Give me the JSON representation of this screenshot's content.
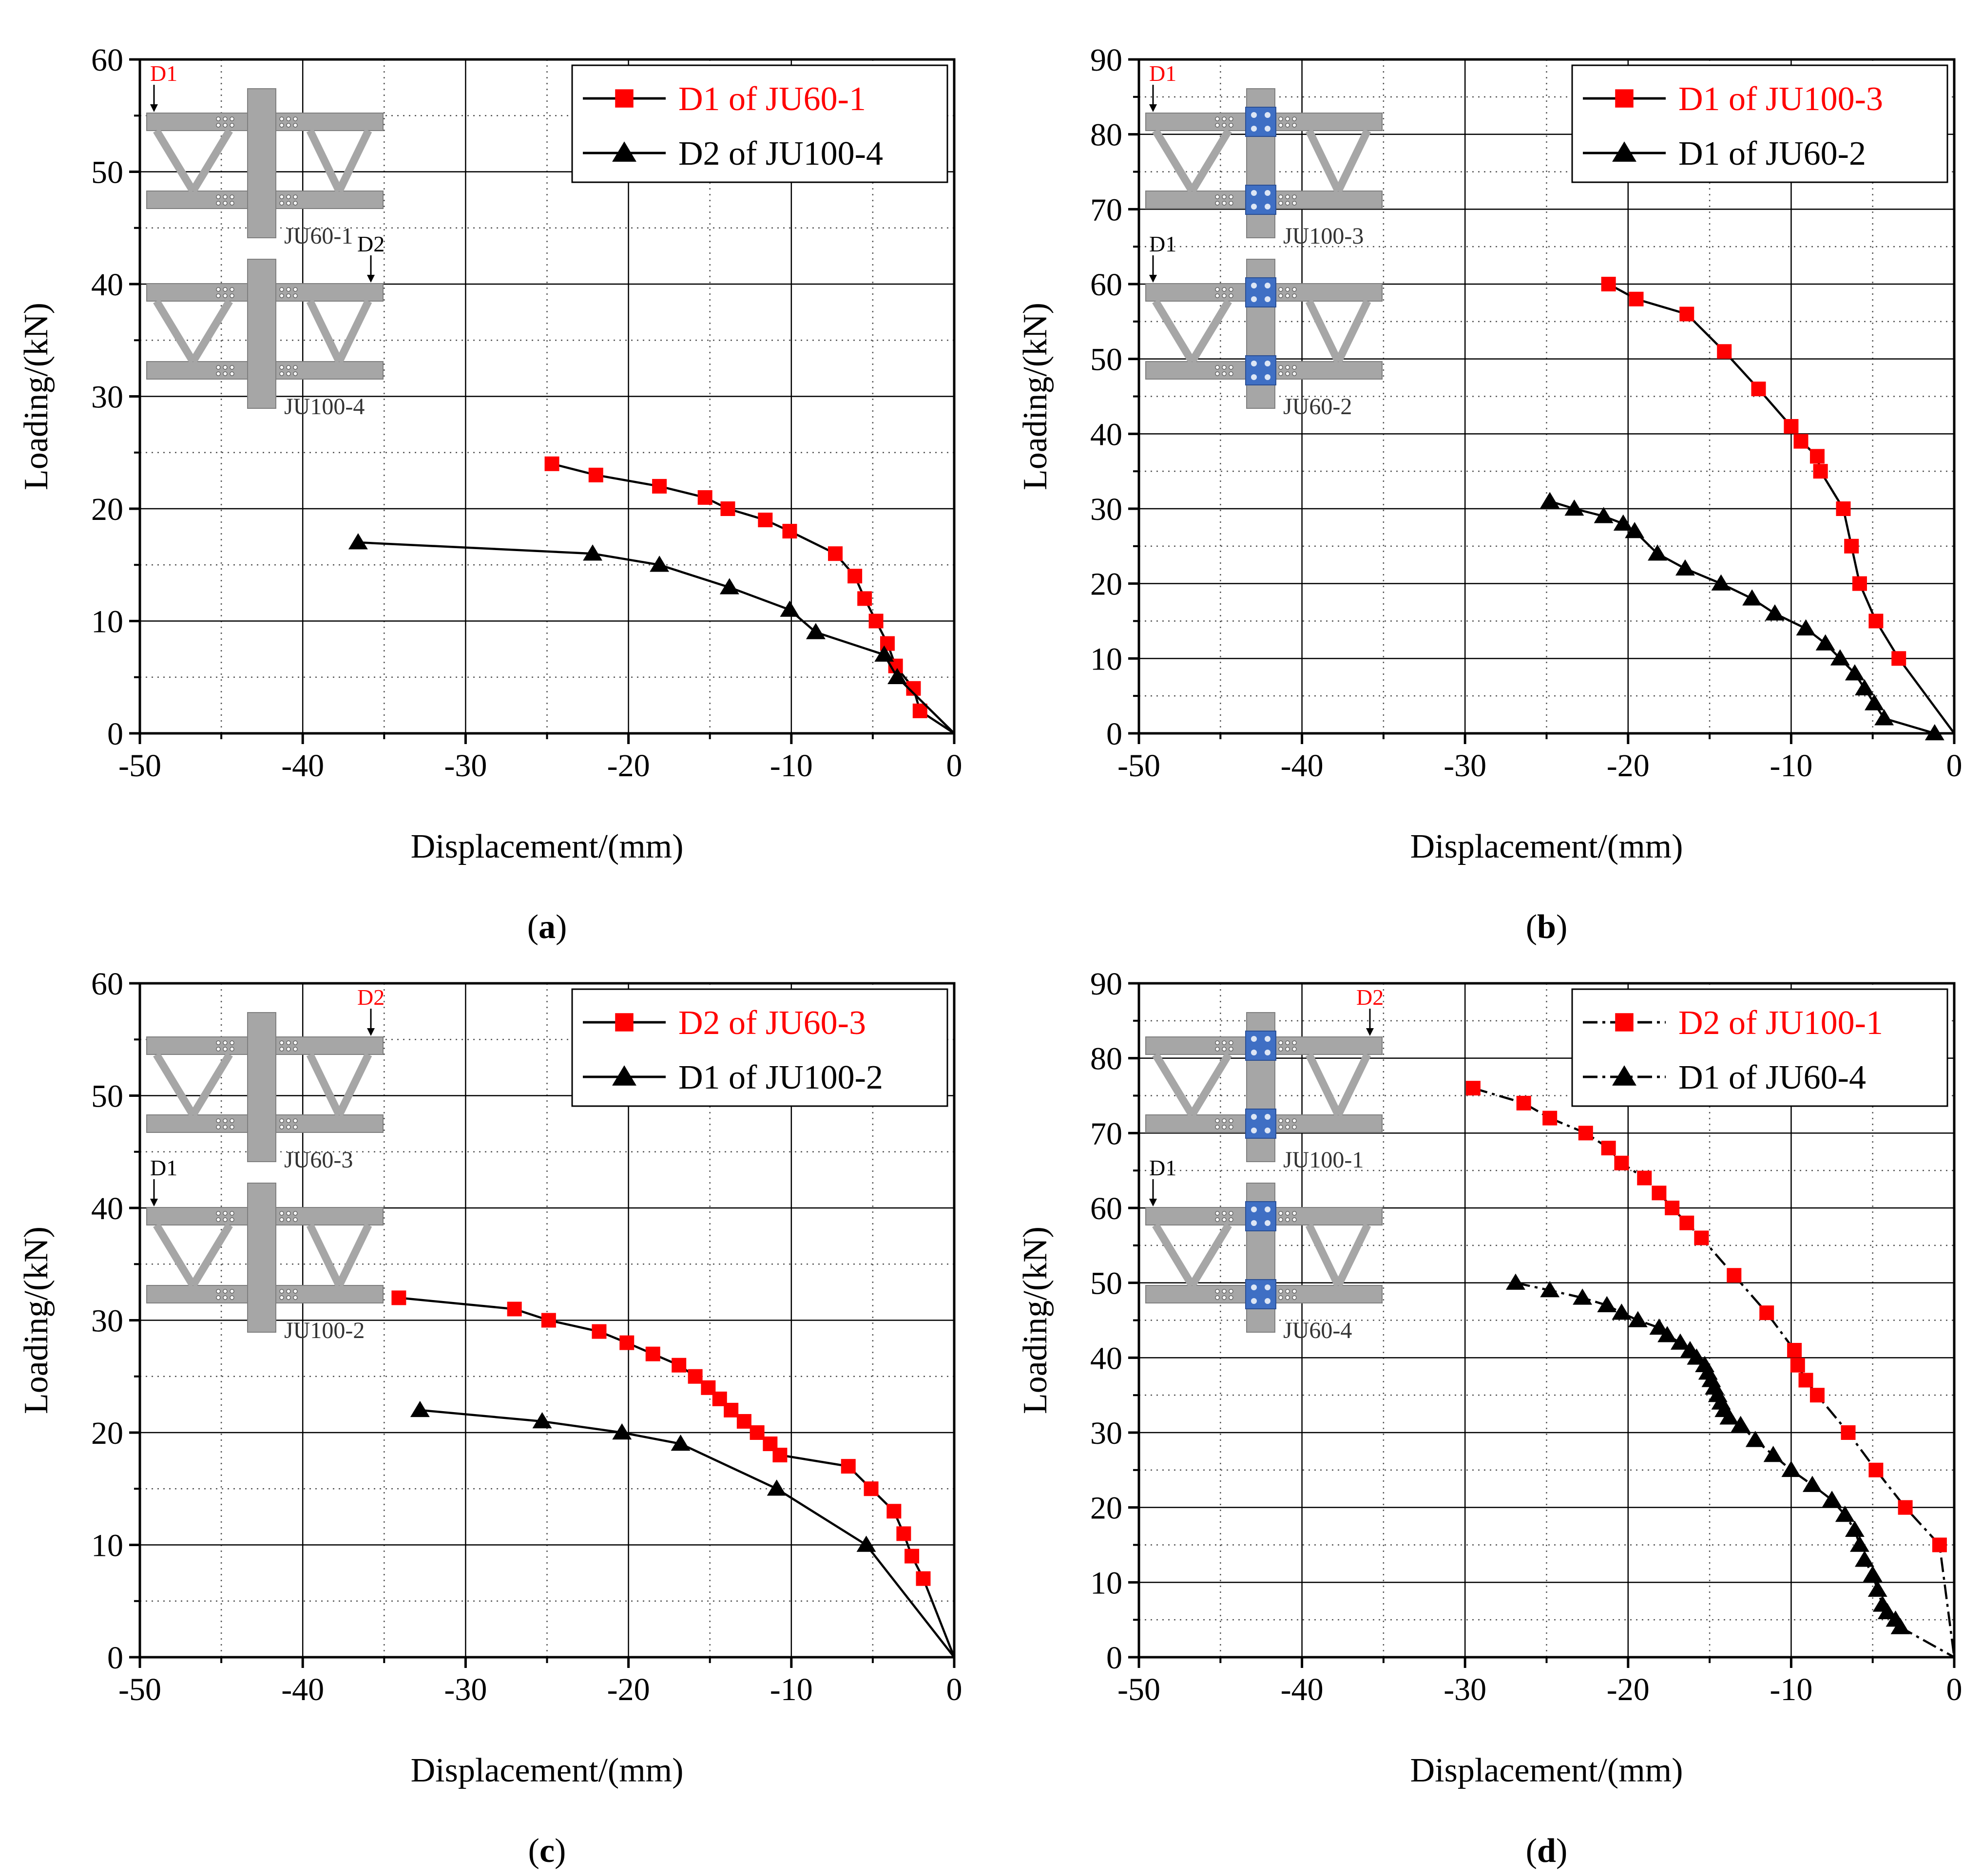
{
  "chart_data": [
    {
      "type": "line",
      "panel_label": "a",
      "xlabel": "Displacement/(mm)",
      "ylabel": "Loading/(kN)",
      "xlim": [
        -50,
        0
      ],
      "ylim": [
        0,
        60
      ],
      "xticks": [
        -50,
        -40,
        -30,
        -20,
        -10,
        0
      ],
      "yticks": [
        0,
        10,
        20,
        30,
        40,
        50,
        60
      ],
      "grid": true,
      "legend_position": "top-right",
      "series": [
        {
          "name": "D1 of JU60-1",
          "color": "#ff0000",
          "marker": "square",
          "dashed": false,
          "x": [
            -24.7,
            -22,
            -18.1,
            -15.3,
            -13.9,
            -11.6,
            -10.1,
            -7.3,
            -6.1,
            -5.5,
            -4.8,
            -4.1,
            -3.6,
            -2.5,
            -2.1,
            0
          ],
          "y": [
            24,
            23,
            22,
            21,
            20,
            19,
            18,
            16,
            14,
            12,
            10,
            8,
            6,
            4,
            2,
            0
          ]
        },
        {
          "name": "D2 of JU100-4",
          "color": "#000000",
          "marker": "triangle",
          "dashed": false,
          "x": [
            -36.6,
            -22.2,
            -18.1,
            -13.8,
            -10.1,
            -8.5,
            -4.3,
            -3.5,
            0
          ],
          "y": [
            17,
            16,
            15,
            13,
            11,
            9,
            7,
            5,
            0
          ]
        }
      ],
      "insets": [
        {
          "pointer": "D1",
          "label": "JU60-1",
          "bolted": false,
          "pointer_side": "left",
          "pointer_color": "#ff0000"
        },
        {
          "pointer": "D2",
          "label": "JU100-4",
          "bolted": false,
          "pointer_side": "right",
          "pointer_color": "#000000"
        }
      ]
    },
    {
      "type": "line",
      "panel_label": "b",
      "xlabel": "Displacement/(mm)",
      "ylabel": "Loading/(kN)",
      "xlim": [
        -50,
        0
      ],
      "ylim": [
        0,
        90
      ],
      "xticks": [
        -50,
        -40,
        -30,
        -20,
        -10,
        0
      ],
      "yticks": [
        0,
        10,
        20,
        30,
        40,
        50,
        60,
        70,
        80,
        90
      ],
      "grid": true,
      "legend_position": "top-right",
      "series": [
        {
          "name": "D1 of JU100-3",
          "color": "#ff0000",
          "marker": "square",
          "dashed": false,
          "x": [
            -21.2,
            -19.5,
            -16.4,
            -14.1,
            -12,
            -10,
            -9.4,
            -8.4,
            -8.2,
            -6.8,
            -6.3,
            -5.8,
            -4.8,
            -3.4,
            0
          ],
          "y": [
            60,
            58,
            56,
            51,
            46,
            41,
            39,
            37,
            35,
            30,
            25,
            20,
            15,
            10,
            0
          ]
        },
        {
          "name": "D1 of JU60-2",
          "color": "#000000",
          "marker": "triangle",
          "dashed": false,
          "x": [
            -24.8,
            -23.3,
            -21.5,
            -20.3,
            -19.6,
            -18.2,
            -16.5,
            -14.3,
            -12.4,
            -11,
            -9.1,
            -7.9,
            -7,
            -6.1,
            -5.5,
            -4.9,
            -4.3,
            -1.2,
            0
          ],
          "y": [
            31,
            30,
            29,
            28,
            27,
            24,
            22,
            20,
            18,
            16,
            14,
            12,
            10,
            8,
            6,
            4,
            2,
            0,
            0
          ]
        }
      ],
      "insets": [
        {
          "pointer": "D1",
          "label": "JU100-3",
          "bolted": true,
          "pointer_side": "left",
          "pointer_color": "#ff0000"
        },
        {
          "pointer": "D1",
          "label": "JU60-2",
          "bolted": true,
          "pointer_side": "left",
          "pointer_color": "#000000"
        }
      ]
    },
    {
      "type": "line",
      "panel_label": "c",
      "xlabel": "Displacement/(mm)",
      "ylabel": "Loading/(kN)",
      "xlim": [
        -50,
        0
      ],
      "ylim": [
        0,
        60
      ],
      "xticks": [
        -50,
        -40,
        -30,
        -20,
        -10,
        0
      ],
      "yticks": [
        0,
        10,
        20,
        30,
        40,
        50,
        60
      ],
      "grid": true,
      "legend_position": "top-right",
      "series": [
        {
          "name": "D2 of JU60-3",
          "color": "#ff0000",
          "marker": "square",
          "dashed": false,
          "x": [
            -34.1,
            -27,
            -24.9,
            -21.8,
            -20.1,
            -18.5,
            -16.9,
            -15.9,
            -15.1,
            -14.4,
            -13.7,
            -12.9,
            -12.1,
            -11.3,
            -10.7,
            -6.5,
            -5.1,
            -3.7,
            -3.1,
            -2.6,
            -1.9,
            0
          ],
          "y": [
            32,
            31,
            30,
            29,
            28,
            27,
            26,
            25,
            24,
            23,
            22,
            21,
            20,
            19,
            18,
            17,
            15,
            13,
            11,
            9,
            7,
            0
          ]
        },
        {
          "name": "D1 of JU100-2",
          "color": "#000000",
          "marker": "triangle",
          "dashed": false,
          "x": [
            -32.8,
            -25.3,
            -20.4,
            -16.8,
            -10.9,
            -5.4,
            0
          ],
          "y": [
            22,
            21,
            20,
            19,
            15,
            10,
            0
          ]
        }
      ],
      "insets": [
        {
          "pointer": "D2",
          "label": "JU60-3",
          "bolted": false,
          "pointer_side": "right",
          "pointer_color": "#ff0000"
        },
        {
          "pointer": "D1",
          "label": "JU100-2",
          "bolted": false,
          "pointer_side": "left",
          "pointer_color": "#000000"
        }
      ]
    },
    {
      "type": "line",
      "panel_label": "d",
      "xlabel": "Displacement/(mm)",
      "ylabel": "Loading/(kN)",
      "xlim": [
        -50,
        0
      ],
      "ylim": [
        0,
        90
      ],
      "xticks": [
        -50,
        -40,
        -30,
        -20,
        -10,
        0
      ],
      "yticks": [
        0,
        10,
        20,
        30,
        40,
        50,
        60,
        70,
        80,
        90
      ],
      "grid": true,
      "legend_position": "top-right",
      "series": [
        {
          "name": "D2 of JU100-1",
          "color": "#ff0000",
          "marker": "square",
          "dashed": true,
          "x": [
            -29.5,
            -26.4,
            -24.8,
            -22.6,
            -21.2,
            -20.4,
            -19,
            -18.1,
            -17.3,
            -16.4,
            -15.5,
            -13.5,
            -11.5,
            -9.8,
            -9.6,
            -9.1,
            -8.4,
            -6.5,
            -4.8,
            -3,
            -0.9,
            0
          ],
          "y": [
            76,
            74,
            72,
            70,
            68,
            66,
            64,
            62,
            60,
            58,
            56,
            51,
            46,
            41,
            39,
            37,
            35,
            30,
            25,
            20,
            15,
            0
          ]
        },
        {
          "name": "D1 of JU60-4",
          "color": "#000000",
          "marker": "triangle",
          "dashed": true,
          "x": [
            -26.9,
            -24.8,
            -22.8,
            -21.3,
            -20.4,
            -19.4,
            -18.1,
            -17.6,
            -16.8,
            -16.2,
            -15.8,
            -15.3,
            -15.1,
            -14.9,
            -14.7,
            -14.5,
            -14.3,
            -14.1,
            -13.8,
            -13.1,
            -12.2,
            -11.1,
            -10,
            -8.7,
            -7.5,
            -6.7,
            -6.1,
            -5.8,
            -5.5,
            -5,
            -4.7,
            -4.4,
            -4.1,
            -3.6,
            -3.3,
            0
          ],
          "y": [
            50,
            49,
            48,
            47,
            46,
            45,
            44,
            43,
            42,
            41,
            40,
            39,
            38,
            37,
            36,
            35,
            34,
            33,
            32,
            31,
            29,
            27,
            25,
            23,
            21,
            19,
            17,
            15,
            13,
            11,
            9,
            7,
            6,
            5,
            4,
            0
          ]
        }
      ],
      "insets": [
        {
          "pointer": "D2",
          "label": "JU100-1",
          "bolted": true,
          "pointer_side": "right",
          "pointer_color": "#ff0000"
        },
        {
          "pointer": "D1",
          "label": "JU60-4",
          "bolted": true,
          "pointer_side": "left",
          "pointer_color": "#000000"
        }
      ]
    }
  ]
}
